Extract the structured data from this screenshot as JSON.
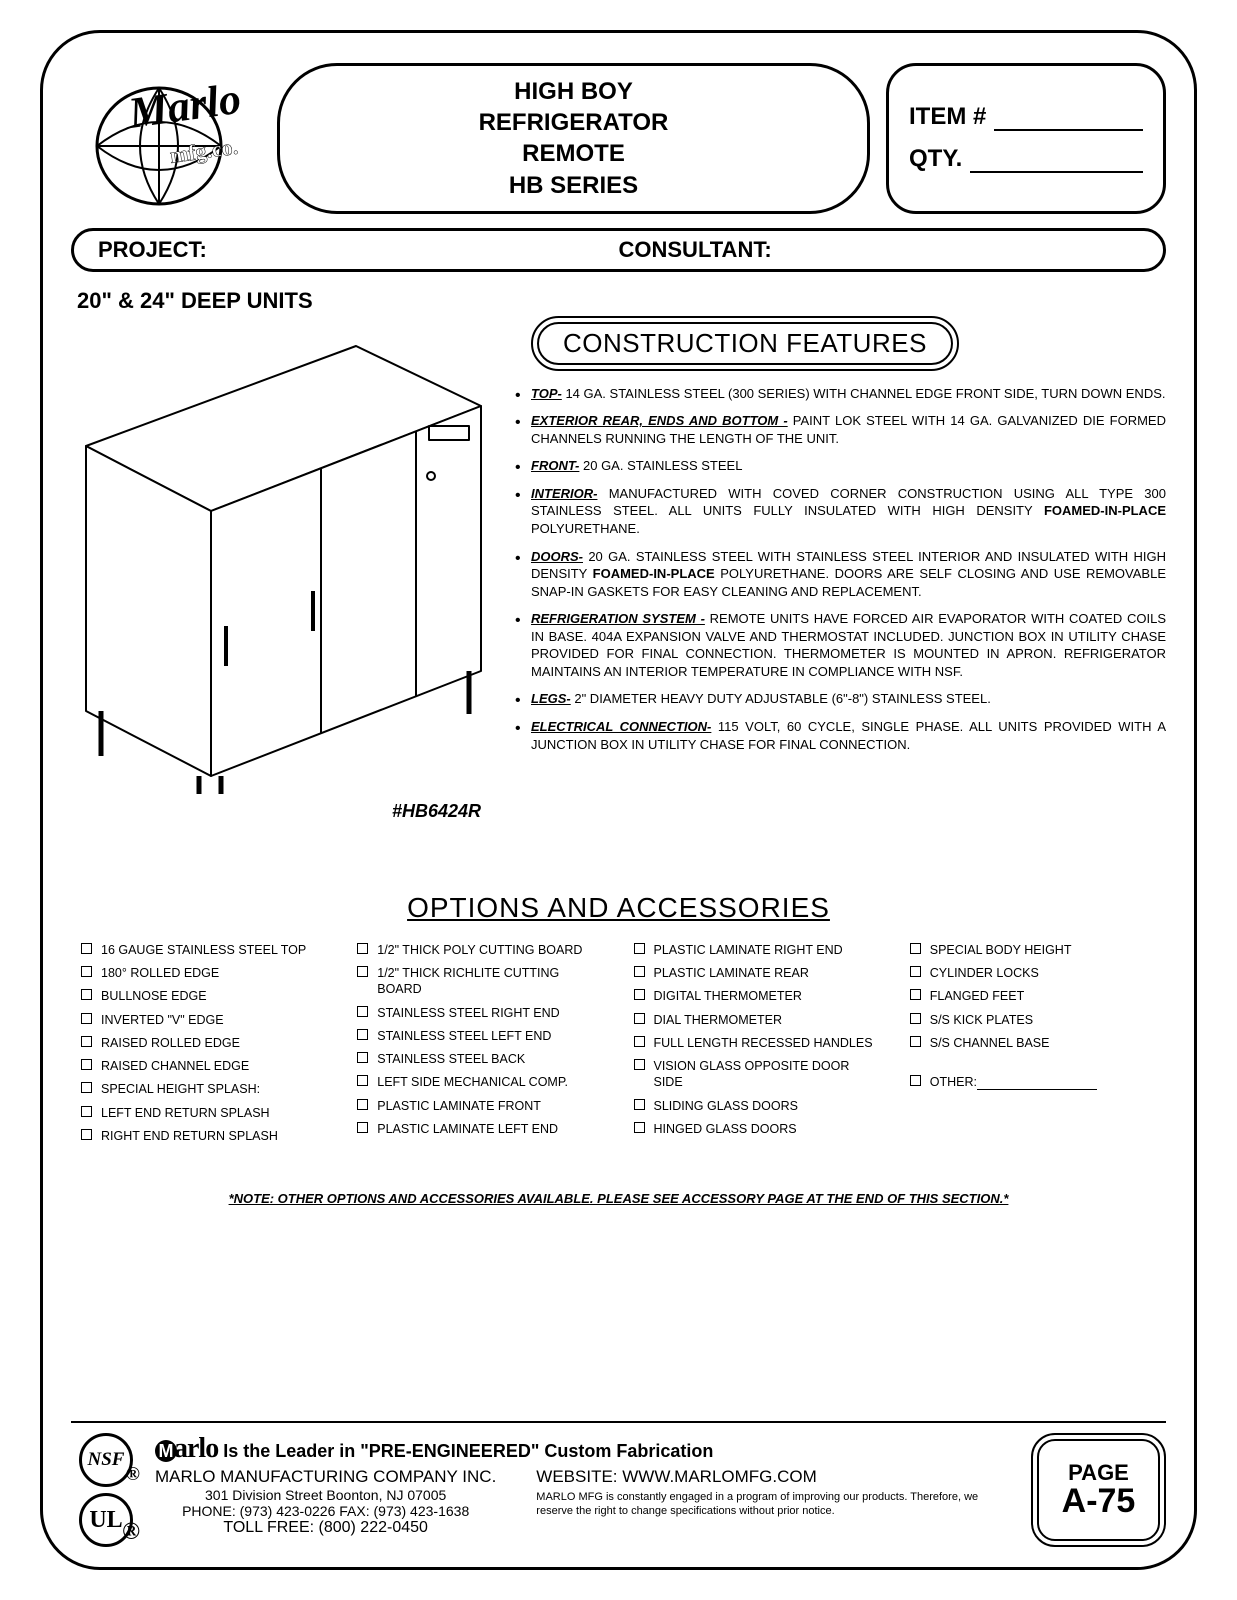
{
  "header": {
    "title_lines": [
      "HIGH BOY",
      "REFRIGERATOR",
      "REMOTE",
      "HB  SERIES"
    ],
    "item_label": "ITEM #",
    "qty_label": "QTY."
  },
  "proj": {
    "project": "PROJECT:",
    "consultant": "CONSULTANT:"
  },
  "subtitle": "20\" & 24\" DEEP UNITS",
  "model": "#HB6424R",
  "features": {
    "heading": "CONSTRUCTION FEATURES",
    "items": [
      {
        "key": "TOP-",
        "text": " 14 GA. STAINLESS STEEL (300 SERIES) WITH CHANNEL EDGE FRONT SIDE, TURN DOWN ENDS."
      },
      {
        "key": "EXTERIOR REAR, ENDS AND BOTTOM -",
        "text": " PAINT LOK STEEL WITH 14 GA. GALVANIZED DIE FORMED CHANNELS RUNNING THE LENGTH  OF THE UNIT."
      },
      {
        "key": "FRONT-",
        "text": " 20 GA. STAINLESS STEEL"
      },
      {
        "key": "INTERIOR-",
        "text": " MANUFACTURED WITH COVED CORNER CONSTRUCTION USING ALL TYPE 300 STAINLESS STEEL. ALL UNITS FULLY INSULATED WITH HIGH DENSITY ",
        "bold_tail": "FOAMED-IN-PLACE",
        "tail": " POLYURETHANE."
      },
      {
        "key": "DOORS-",
        "text": " 20 GA. STAINLESS STEEL WITH STAINLESS STEEL INTERIOR AND INSULATED WITH HIGH DENSITY ",
        "bold_tail": "FOAMED-IN-PLACE",
        "tail": " POLYURETHANE. DOORS ARE SELF CLOSING AND USE REMOVABLE SNAP-IN GASKETS FOR EASY CLEANING AND REPLACEMENT."
      },
      {
        "key": "REFRIGERATION SYSTEM -",
        "text": " REMOTE UNITS HAVE FORCED  AIR EVAPORATOR WITH COATED COILS IN BASE. 404A EXPANSION VALVE AND THERMOSTAT INCLUDED. JUNCTION BOX IN UTILITY CHASE PROVIDED FOR FINAL CONNECTION. THERMOMETER IS MOUNTED IN APRON. REFRIGERATOR MAINTAINS AN INTERIOR TEMPERATURE  IN COMPLIANCE  WITH NSF."
      },
      {
        "key": "LEGS-",
        "text": " 2\" DIAMETER HEAVY DUTY ADJUSTABLE (6\"-8\") STAINLESS STEEL."
      },
      {
        "key": "ELECTRICAL CONNECTION-",
        "text": " 115 VOLT, 60 CYCLE, SINGLE PHASE. ALL UNITS PROVIDED WITH  A  JUNCTION BOX IN  UTILITY CHASE  FOR FINAL CONNECTION."
      }
    ]
  },
  "options": {
    "heading": "OPTIONS AND ACCESSORIES",
    "cols": [
      [
        "16 GAUGE STAINLESS STEEL TOP",
        "180° ROLLED EDGE",
        "BULLNOSE EDGE",
        "INVERTED \"V\" EDGE",
        "RAISED ROLLED EDGE",
        "RAISED CHANNEL EDGE",
        "SPECIAL HEIGHT SPLASH:",
        "LEFT END RETURN SPLASH",
        "RIGHT END RETURN SPLASH"
      ],
      [
        "1/2\" THICK POLY CUTTING BOARD",
        "1/2\" THICK RICHLITE CUTTING BOARD",
        "STAINLESS STEEL RIGHT END",
        "STAINLESS STEEL LEFT END",
        "STAINLESS STEEL BACK",
        "LEFT SIDE MECHANICAL COMP.",
        "PLASTIC LAMINATE FRONT",
        "PLASTIC LAMINATE LEFT END"
      ],
      [
        "PLASTIC LAMINATE RIGHT END",
        "PLASTIC LAMINATE REAR",
        "DIGITAL THERMOMETER",
        "DIAL THERMOMETER",
        "FULL LENGTH RECESSED HANDLES",
        "VISION GLASS OPPOSITE DOOR SIDE",
        "SLIDING GLASS DOORS",
        "HINGED GLASS DOORS"
      ],
      [
        "SPECIAL BODY HEIGHT",
        "CYLINDER LOCKS",
        "FLANGED FEET",
        "S/S KICK PLATES",
        "S/S CHANNEL BASE"
      ]
    ],
    "other_label": "OTHER:"
  },
  "note": "*NOTE:  OTHER OPTIONS AND ACCESSORIES AVAILABLE.  PLEASE SEE ACCESSORY PAGE AT THE END OF THIS SECTION.*",
  "footer": {
    "tagline_suffix": " Is the Leader in \"PRE-ENGINEERED\" Custom Fabrication",
    "company": "MARLO MANUFACTURING COMPANY INC.",
    "address": "301 Division Street    Boonton, NJ 07005",
    "phone": "PHONE: (973) 423-0226  FAX: (973) 423-1638",
    "tollfree": "TOLL FREE: (800) 222-0450",
    "website": "WEBSITE: WWW.MARLOMFG.COM",
    "disclaimer": "MARLO MFG is constantly engaged in a program of improving our products. Therefore, we reserve the right   to change specifications without prior notice.",
    "page_label": "PAGE",
    "page_num": "A-75",
    "nsf": "NSF",
    "ul": "UL"
  }
}
